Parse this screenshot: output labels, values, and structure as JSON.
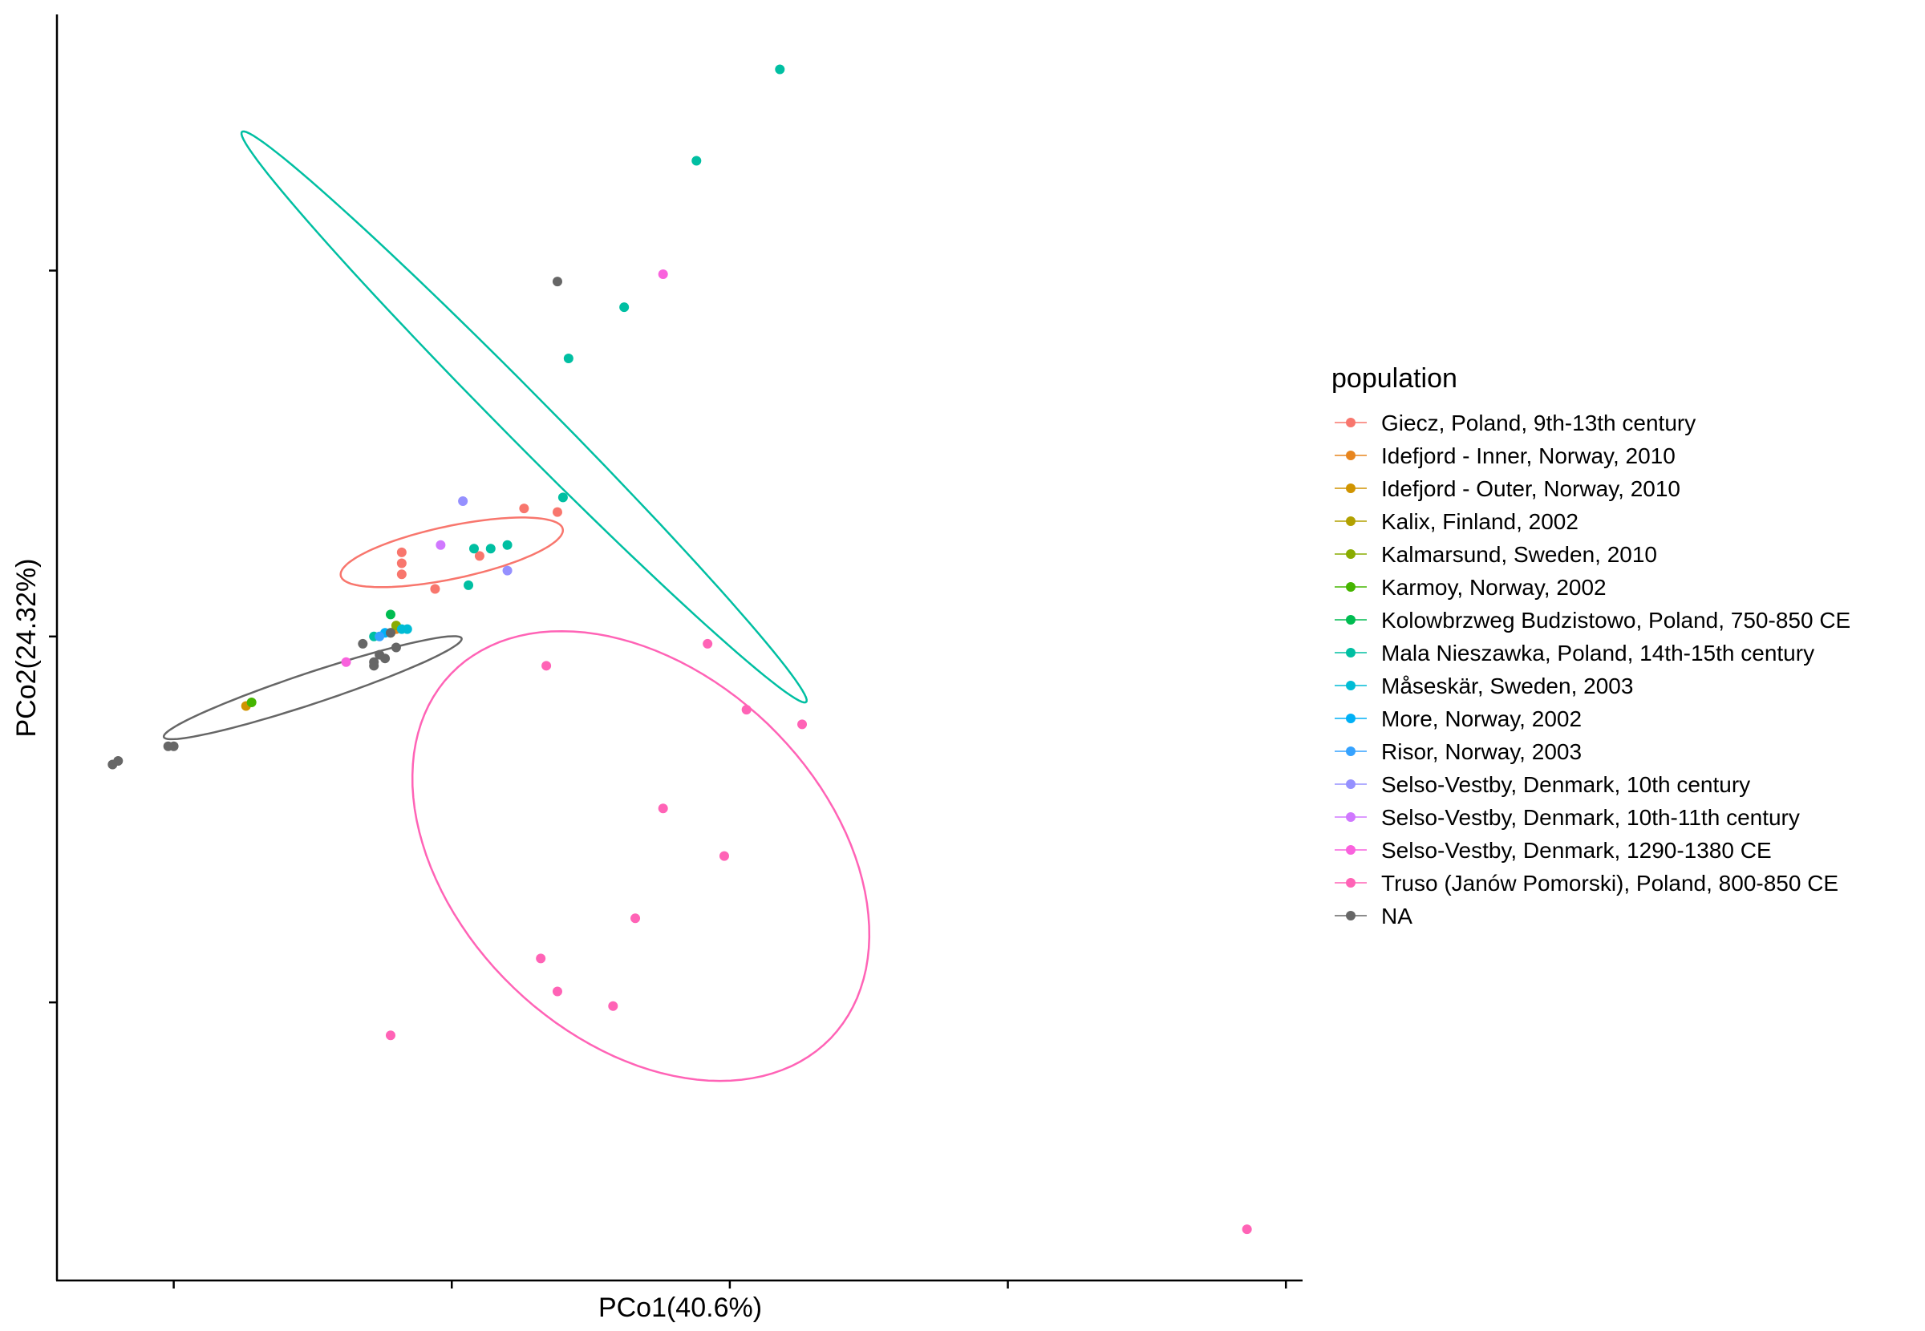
{
  "chart_data": {
    "type": "scatter",
    "xlabel": "PCo1(40.6%)",
    "ylabel": "PCo2(24.32%)",
    "xlim": [
      -0.21,
      2.03
    ],
    "ylim": [
      -1.76,
      1.7
    ],
    "x_ticks": [
      0,
      0.5,
      1,
      1.5,
      2
    ],
    "y_ticks": [
      -1,
      0,
      1
    ],
    "tick_labels_shown": false,
    "grid": false,
    "legend_position": "right",
    "legend_title": "population",
    "series": [
      {
        "name": "Giecz, Poland, 9th-13th century",
        "color": "#F8766D",
        "points": [
          [
            0.41,
            0.23
          ],
          [
            0.41,
            0.2
          ],
          [
            0.41,
            0.17
          ],
          [
            0.47,
            0.13
          ],
          [
            0.63,
            0.35
          ],
          [
            0.69,
            0.34
          ],
          [
            0.55,
            0.22
          ]
        ],
        "ellipse": {
          "cx": 0.5,
          "cy": 0.23,
          "rx": 0.21,
          "ry": 0.07,
          "angle": 19
        }
      },
      {
        "name": "Idefjord - Inner, Norway, 2010",
        "color": "#E7851E",
        "points": [
          [
            0.4,
            0.02
          ]
        ]
      },
      {
        "name": "Idefjord - Outer, Norway, 2010",
        "color": "#D09400",
        "points": [
          [
            0.13,
            -0.19
          ]
        ]
      },
      {
        "name": "Kalix, Finland, 2002",
        "color": "#B2A100",
        "points": [
          [
            0.39,
            0.01
          ]
        ]
      },
      {
        "name": "Kalmarsund, Sweden, 2010",
        "color": "#89AC00",
        "points": [
          [
            0.4,
            0.03
          ]
        ]
      },
      {
        "name": "Karmoy, Norway, 2002",
        "color": "#45B500",
        "points": [
          [
            0.14,
            -0.18
          ]
        ]
      },
      {
        "name": "Kolowbrzweg Budzistowo, Poland, 750-850 CE",
        "color": "#00BC51",
        "points": [
          [
            0.39,
            0.06
          ]
        ]
      },
      {
        "name": "Mala Nieszawka, Poland, 14th-15th century",
        "color": "#00BFA2",
        "points": [
          [
            1.09,
            1.55
          ],
          [
            0.94,
            1.3
          ],
          [
            0.81,
            0.9
          ],
          [
            0.71,
            0.76
          ],
          [
            0.7,
            0.38
          ],
          [
            0.54,
            0.24
          ],
          [
            0.57,
            0.24
          ],
          [
            0.6,
            0.25
          ],
          [
            0.53,
            0.14
          ],
          [
            0.36,
            0
          ]
        ],
        "ellipse": {
          "cx": 0.63,
          "cy": 0.6,
          "rx": 0.93,
          "ry": 0.05,
          "angle": -57
        }
      },
      {
        "name": "Måseskär, Sweden, 2003",
        "color": "#00BCD5",
        "points": [
          [
            0.42,
            0.02
          ],
          [
            0.41,
            0.02
          ]
        ]
      },
      {
        "name": "More, Norway, 2002",
        "color": "#00B0F6",
        "points": [
          [
            0.38,
            0.01
          ]
        ]
      },
      {
        "name": "Risor, Norway, 2003",
        "color": "#35A2FF",
        "points": [
          [
            0.37,
            0
          ]
        ]
      },
      {
        "name": "Selso-Vestby, Denmark, 10th century",
        "color": "#9590FF",
        "points": [
          [
            0.52,
            0.37
          ],
          [
            0.6,
            0.18
          ]
        ]
      },
      {
        "name": "Selso-Vestby, Denmark, 10th-11th century",
        "color": "#D078FF",
        "points": [
          [
            0.48,
            0.25
          ]
        ]
      },
      {
        "name": "Selso-Vestby, Denmark, 1290-1380 CE",
        "color": "#F962DD",
        "points": [
          [
            0.88,
            0.99
          ],
          [
            0.31,
            -0.07
          ]
        ]
      },
      {
        "name": "Truso (Janów Pomorski), Poland, 800-850 CE",
        "color": "#FF63B6",
        "points": [
          [
            0.96,
            -0.02
          ],
          [
            1.03,
            -0.2
          ],
          [
            1.13,
            -0.24
          ],
          [
            0.67,
            -0.08
          ],
          [
            0.88,
            -0.47
          ],
          [
            0.99,
            -0.6
          ],
          [
            0.83,
            -0.77
          ],
          [
            0.66,
            -0.88
          ],
          [
            0.69,
            -0.97
          ],
          [
            0.79,
            -1.01
          ],
          [
            0.39,
            -1.09
          ],
          [
            1.93,
            -1.62
          ]
        ],
        "ellipse": {
          "cx": 0.84,
          "cy": -0.6,
          "rx": 0.37,
          "ry": 0.64,
          "angle": 20
        }
      },
      {
        "name": "NA",
        "color": "#666666",
        "points": [
          [
            0.69,
            0.97
          ],
          [
            0.34,
            -0.02
          ],
          [
            0.37,
            -0.05
          ],
          [
            0.38,
            -0.06
          ],
          [
            0.39,
            0.01
          ],
          [
            0.4,
            -0.03
          ],
          [
            0.36,
            -0.07
          ],
          [
            0.36,
            -0.08
          ],
          [
            -0.01,
            -0.3
          ],
          [
            -0.11,
            -0.35
          ],
          [
            -0.1,
            -0.34
          ],
          [
            0,
            -0.3
          ]
        ],
        "ellipse": {
          "cx": 0.25,
          "cy": -0.14,
          "rx": 0.3,
          "ry": 0.04,
          "angle": 27
        }
      }
    ]
  }
}
